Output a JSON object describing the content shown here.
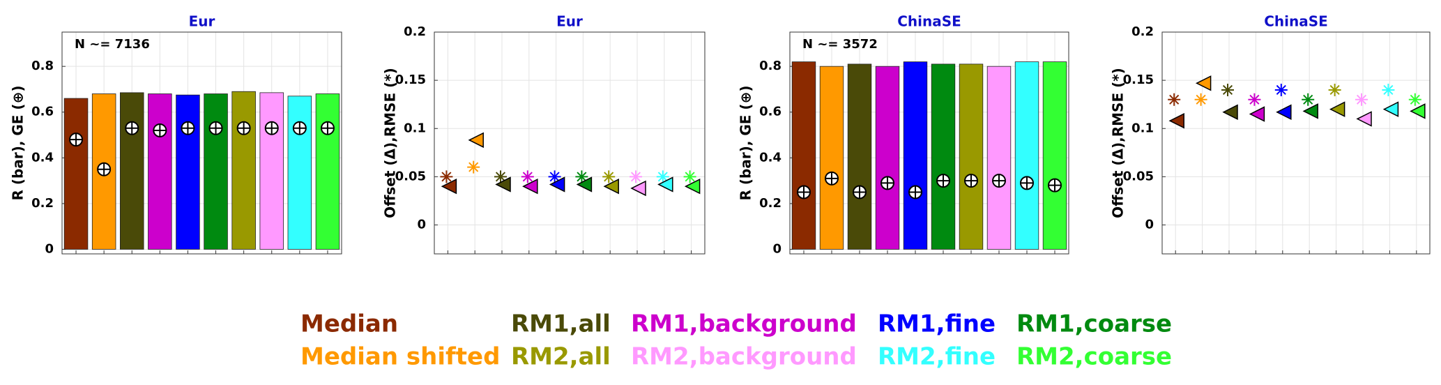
{
  "chart_data": [
    {
      "type": "bar",
      "title": "Eur",
      "annotation": "N ~= 7136",
      "ylabel": "R (bar), GE (⊕)",
      "categories": [
        null,
        null,
        null,
        null,
        null,
        null,
        null,
        null,
        null,
        null
      ],
      "values": [
        0.66,
        0.68,
        0.685,
        0.68,
        0.675,
        0.68,
        0.69,
        0.685,
        0.67,
        0.68
      ],
      "ge": [
        0.48,
        0.35,
        0.53,
        0.52,
        0.53,
        0.53,
        0.53,
        0.53,
        0.53,
        0.53
      ],
      "ylim": [
        -0.02,
        0.95
      ],
      "yticks": [
        0,
        0.2,
        0.4,
        0.6,
        0.8
      ],
      "grid": true
    },
    {
      "type": "scatter",
      "title": "Eur",
      "ylabel": "Offset (Δ),RMSE (*)",
      "categories": [
        null,
        null,
        null,
        null,
        null,
        null,
        null,
        null,
        null,
        null
      ],
      "offset": [
        0.04,
        0.088,
        0.042,
        0.04,
        0.042,
        0.042,
        0.04,
        0.038,
        0.042,
        0.04
      ],
      "rmse": [
        0.05,
        0.06,
        0.05,
        0.05,
        0.05,
        0.05,
        0.05,
        0.05,
        0.05,
        0.05
      ],
      "ylim": [
        -0.03,
        0.2
      ],
      "yticks": [
        0,
        0.05,
        0.1,
        0.15,
        0.2
      ],
      "grid": true
    },
    {
      "type": "bar",
      "title": "ChinaSE",
      "annotation": "N ~= 3572",
      "ylabel": "R (bar), GE (⊕)",
      "categories": [
        null,
        null,
        null,
        null,
        null,
        null,
        null,
        null,
        null,
        null
      ],
      "values": [
        0.82,
        0.8,
        0.81,
        0.8,
        0.82,
        0.81,
        0.81,
        0.8,
        0.82,
        0.82
      ],
      "ge": [
        0.25,
        0.31,
        0.25,
        0.29,
        0.25,
        0.3,
        0.3,
        0.3,
        0.29,
        0.28
      ],
      "ylim": [
        -0.02,
        0.95
      ],
      "yticks": [
        0,
        0.2,
        0.4,
        0.6,
        0.8
      ],
      "grid": true
    },
    {
      "type": "scatter",
      "title": "ChinaSE",
      "ylabel": "Offset (Δ),RMSE (*)",
      "categories": [
        null,
        null,
        null,
        null,
        null,
        null,
        null,
        null,
        null,
        null
      ],
      "offset": [
        0.108,
        0.147,
        0.117,
        0.115,
        0.117,
        0.118,
        0.12,
        0.11,
        0.12,
        0.118
      ],
      "rmse": [
        0.13,
        0.13,
        0.14,
        0.13,
        0.14,
        0.13,
        0.14,
        0.13,
        0.14,
        0.13
      ],
      "ylim": [
        -0.03,
        0.2
      ],
      "yticks": [
        0,
        0.05,
        0.1,
        0.15,
        0.2
      ],
      "grid": true
    }
  ],
  "legend": [
    {
      "name": "Median",
      "color": "#8b2a00"
    },
    {
      "name": "Median shifted",
      "color": "#ff9900"
    },
    {
      "name": "RM1,all",
      "color": "#4a4a08"
    },
    {
      "name": "RM1,background",
      "color": "#cc00cc"
    },
    {
      "name": "RM1,fine",
      "color": "#0000ff"
    },
    {
      "name": "RM1,coarse",
      "color": "#008a10"
    },
    {
      "name": "RM2,all",
      "color": "#999900"
    },
    {
      "name": "RM2,background",
      "color": "#ff99ff"
    },
    {
      "name": "RM2,fine",
      "color": "#33ffff"
    },
    {
      "name": "RM2,coarse",
      "color": "#33ff33"
    }
  ]
}
